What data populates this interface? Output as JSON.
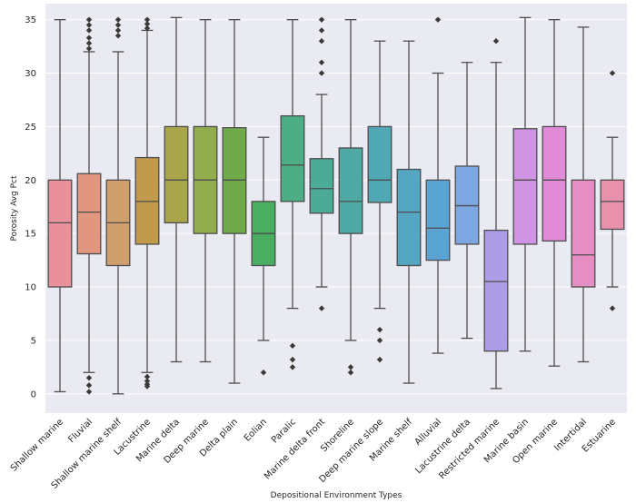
{
  "chart_data": {
    "type": "box",
    "title": "",
    "xlabel": "Depositional Environment Types",
    "ylabel": "Porosity Avg Pct",
    "ylim": [
      -1.8,
      36.5
    ],
    "yticks": [
      0,
      5,
      10,
      15,
      20,
      25,
      30,
      35
    ],
    "grid": true,
    "categories": [
      "Shallow marine",
      "Fluvial",
      "Shallow marine shelf",
      "Lacustrine",
      "Marine delta",
      "Deep marine",
      "Delta plain",
      "Eolian",
      "Paralic",
      "Marine delta front",
      "Shoreline",
      "Deep marine slope",
      "Marine shelf",
      "Alluvial",
      "Lacustrine delta",
      "Restricted marine",
      "Marine basin",
      "Open marine",
      "Intertidal",
      "Estuarine"
    ],
    "boxes": [
      {
        "category": "Shallow marine",
        "color": "#e8919b",
        "whisker_low": 0.2,
        "q1": 10,
        "median": 16,
        "q3": 20,
        "whisker_high": 35,
        "outliers": []
      },
      {
        "category": "Fluvial",
        "color": "#e0967f",
        "whisker_low": 2,
        "q1": 13.1,
        "median": 17,
        "q3": 20.6,
        "whisker_high": 32,
        "outliers": [
          1.5,
          0.8,
          0.2,
          32.3,
          32.8,
          33.3,
          34,
          34.5,
          35
        ]
      },
      {
        "category": "Shallow marine shelf",
        "color": "#d09f6e",
        "whisker_low": 0,
        "q1": 12,
        "median": 16,
        "q3": 20,
        "whisker_high": 32,
        "outliers": [
          33.5,
          34,
          34.5,
          35
        ]
      },
      {
        "category": "Lacustrine",
        "color": "#c29a4c",
        "whisker_low": 2,
        "q1": 14,
        "median": 18,
        "q3": 22.1,
        "whisker_high": 34,
        "outliers": [
          1.6,
          1.2,
          0.9,
          0.7,
          34.2,
          34.6,
          35
        ]
      },
      {
        "category": "Marine delta",
        "color": "#a9a54b",
        "whisker_low": 3,
        "q1": 16,
        "median": 20,
        "q3": 25,
        "whisker_high": 35.2,
        "outliers": []
      },
      {
        "category": "Deep marine",
        "color": "#92ad4e",
        "whisker_low": 3,
        "q1": 15,
        "median": 20,
        "q3": 25,
        "whisker_high": 35,
        "outliers": []
      },
      {
        "category": "Delta plain",
        "color": "#6faa4b",
        "whisker_low": 1,
        "q1": 15,
        "median": 20,
        "q3": 24.9,
        "whisker_high": 35,
        "outliers": []
      },
      {
        "category": "Eolian",
        "color": "#4aae62",
        "whisker_low": 5,
        "q1": 12,
        "median": 15,
        "q3": 18,
        "whisker_high": 24,
        "outliers": [
          2
        ]
      },
      {
        "category": "Paralic",
        "color": "#4dae85",
        "whisker_low": 8,
        "q1": 18,
        "median": 21.4,
        "q3": 26,
        "whisker_high": 35,
        "outliers": [
          4.5,
          3.2,
          2.5
        ]
      },
      {
        "category": "Marine delta front",
        "color": "#4bab96",
        "whisker_low": 10,
        "q1": 16.9,
        "median": 19.2,
        "q3": 22,
        "whisker_high": 28,
        "outliers": [
          8,
          30,
          31,
          33,
          34,
          35
        ]
      },
      {
        "category": "Shoreline",
        "color": "#4fa9a4",
        "whisker_low": 5,
        "q1": 15,
        "median": 18,
        "q3": 23,
        "whisker_high": 35,
        "outliers": [
          2.5,
          2
        ]
      },
      {
        "category": "Deep marine slope",
        "color": "#50a8b4",
        "whisker_low": 8,
        "q1": 17.9,
        "median": 20,
        "q3": 25,
        "whisker_high": 33,
        "outliers": [
          6,
          5,
          3.2
        ]
      },
      {
        "category": "Marine shelf",
        "color": "#55a6c2",
        "whisker_low": 1,
        "q1": 12,
        "median": 17,
        "q3": 21,
        "whisker_high": 33,
        "outliers": []
      },
      {
        "category": "Alluvial",
        "color": "#5aa4d3",
        "whisker_low": 3.8,
        "q1": 12.5,
        "median": 15.5,
        "q3": 20,
        "whisker_high": 30,
        "outliers": [
          35
        ]
      },
      {
        "category": "Lacustrine delta",
        "color": "#7da7e3",
        "whisker_low": 5.2,
        "q1": 14,
        "median": 17.6,
        "q3": 21.3,
        "whisker_high": 31,
        "outliers": []
      },
      {
        "category": "Restricted marine",
        "color": "#ad9ce6",
        "whisker_low": 0.5,
        "q1": 4,
        "median": 10.5,
        "q3": 15.3,
        "whisker_high": 31,
        "outliers": [
          33
        ]
      },
      {
        "category": "Marine basin",
        "color": "#cf94e4",
        "whisker_low": 4,
        "q1": 14,
        "median": 20,
        "q3": 24.8,
        "whisker_high": 35.2,
        "outliers": []
      },
      {
        "category": "Open marine",
        "color": "#e08ad8",
        "whisker_low": 2.6,
        "q1": 14.3,
        "median": 20,
        "q3": 25,
        "whisker_high": 35,
        "outliers": []
      },
      {
        "category": "Intertidal",
        "color": "#e68ec3",
        "whisker_low": 3,
        "q1": 10,
        "median": 13,
        "q3": 20,
        "whisker_high": 34.3,
        "outliers": []
      },
      {
        "category": "Estuarine",
        "color": "#e891ad",
        "whisker_low": 10,
        "q1": 15.4,
        "median": 18,
        "q3": 20,
        "whisker_high": 24,
        "outliers": [
          8,
          30
        ]
      }
    ]
  }
}
